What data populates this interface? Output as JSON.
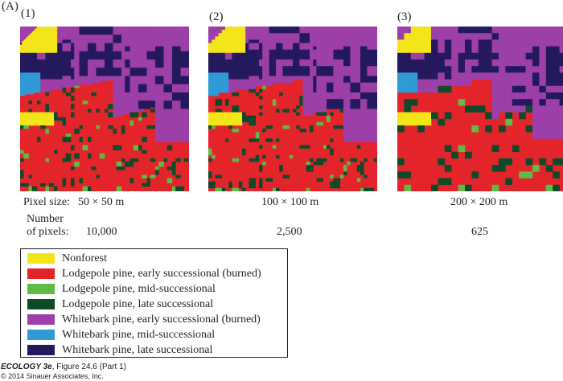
{
  "figure_label": "(A)",
  "colors": {
    "nonforest": "#f2e51a",
    "lodgepole_early": "#e3242b",
    "lodgepole_mid": "#5fbb46",
    "lodgepole_late": "#0e4a2a",
    "whitebark_early": "#9d3fa8",
    "whitebark_mid": "#2f9ad6",
    "whitebark_late": "#23195c"
  },
  "panels": [
    {
      "label": "(1)",
      "pixel_size": "50 × 50 m",
      "pixel_count": "10,000",
      "grid": 100
    },
    {
      "label": "(2)",
      "pixel_size": "100 × 100 m",
      "pixel_count": "2,500",
      "grid": 50
    },
    {
      "label": "(3)",
      "pixel_size": "200 × 200 m",
      "pixel_count": "625",
      "grid": 25
    }
  ],
  "row_labels": {
    "pixel_size": "Pixel size:",
    "number_line1": "Number",
    "number_line2": "of pixels:"
  },
  "legend": [
    {
      "label": "Nonforest",
      "color_key": "nonforest"
    },
    {
      "label": "Lodgepole pine, early successional (burned)",
      "color_key": "lodgepole_early"
    },
    {
      "label": "Lodgepole pine, mid-successional",
      "color_key": "lodgepole_mid"
    },
    {
      "label": "Lodgepole pine, late successional",
      "color_key": "lodgepole_late"
    },
    {
      "label": "Whitebark pine, early successional (burned)",
      "color_key": "whitebark_early"
    },
    {
      "label": "Whitebark pine, mid-successional",
      "color_key": "whitebark_mid"
    },
    {
      "label": "Whitebark pine, late successional",
      "color_key": "whitebark_late"
    }
  ],
  "footer": {
    "title": "ECOLOGY 3e",
    "figure": ", Figure 24.6 (Part 1)",
    "copyright": "© 2014 Sinauer Associates, Inc."
  }
}
